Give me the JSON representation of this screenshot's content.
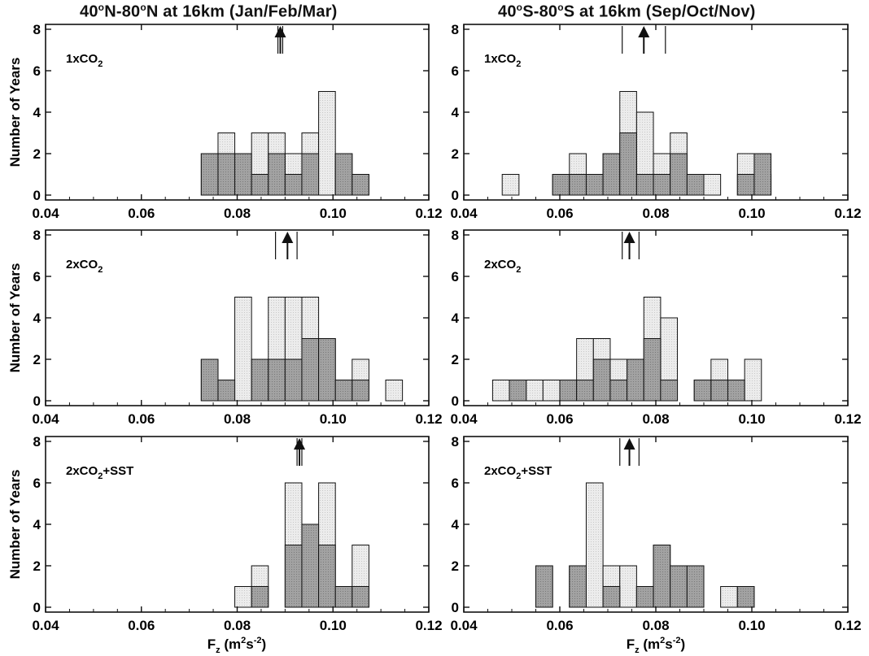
{
  "titles": {
    "left": "40°N-80°N at 16km  (Jan/Feb/Mar)",
    "right": "40°S-80°S at 16km  (Sep/Oct/Nov)"
  },
  "y_label": "Number of Years",
  "x_label": "F_z (m^2s^-2)",
  "colors": {
    "light_bars": "#e6e6e6",
    "dark_bars": "#9a9a9a",
    "outline": "#111111"
  },
  "chart_data": [
    {
      "type": "bar",
      "panel": "1xCO2 NH",
      "label": "1xCO2",
      "xlim": [
        0.04,
        0.12
      ],
      "ylim": [
        0,
        8
      ],
      "bin_width": 0.0035,
      "xticks": [
        "0.04",
        "0.06",
        "0.08",
        "0.10",
        "0.12"
      ],
      "yticks": [
        "0",
        "2",
        "4",
        "6",
        "8"
      ],
      "series": [
        {
          "x": [
            0.0725,
            0.076,
            0.0795,
            0.083,
            0.0865,
            0.09,
            0.0935,
            0.097,
            0.1005,
            0.104
          ],
          "values": [
            2,
            3,
            2,
            3,
            3,
            2,
            3,
            5,
            2,
            1
          ]
        },
        {
          "x": [
            0.0725,
            0.076,
            0.0795,
            0.083,
            0.0865,
            0.09,
            0.0935,
            0.097,
            0.1005,
            0.104
          ],
          "values": [
            2,
            2,
            2,
            1,
            2,
            1,
            2,
            0,
            2,
            1
          ]
        }
      ],
      "arrow": {
        "x": 0.089,
        "range": [
          0.0885,
          0.0895
        ]
      }
    },
    {
      "type": "bar",
      "panel": "1xCO2 SH",
      "label": "1xCO2",
      "xlim": [
        0.04,
        0.12
      ],
      "ylim": [
        0,
        8
      ],
      "bin_width": 0.0035,
      "xticks": [
        "0.04",
        "0.06",
        "0.08",
        "0.10",
        "0.12"
      ],
      "yticks": [
        "0",
        "2",
        "4",
        "6",
        "8"
      ],
      "series": [
        {
          "x": [
            0.048,
            0.0515,
            0.055,
            0.0585,
            0.062,
            0.0655,
            0.069,
            0.0725,
            0.076,
            0.0795,
            0.083,
            0.0865,
            0.09,
            0.0935,
            0.097,
            0.1005
          ],
          "values": [
            1,
            0,
            0,
            1,
            2,
            1,
            2,
            5,
            4,
            2,
            3,
            1,
            1,
            0,
            2,
            1
          ]
        },
        {
          "x": [
            0.048,
            0.0515,
            0.055,
            0.0585,
            0.062,
            0.0655,
            0.069,
            0.0725,
            0.076,
            0.0795,
            0.083,
            0.0865,
            0.09,
            0.0935,
            0.097,
            0.1005
          ],
          "values": [
            0,
            0,
            0,
            1,
            1,
            1,
            2,
            3,
            1,
            1,
            2,
            1,
            0,
            0,
            1,
            2
          ]
        }
      ],
      "arrow": {
        "x": 0.0775,
        "range": [
          0.073,
          0.082
        ]
      }
    },
    {
      "type": "bar",
      "panel": "2xCO2 NH",
      "label": "2xCO2",
      "xlim": [
        0.04,
        0.12
      ],
      "ylim": [
        0,
        8
      ],
      "bin_width": 0.0035,
      "xticks": [
        "0.04",
        "0.06",
        "0.08",
        "0.10",
        "0.12"
      ],
      "yticks": [
        "0",
        "2",
        "4",
        "6",
        "8"
      ],
      "series": [
        {
          "x": [
            0.0725,
            0.076,
            0.0795,
            0.083,
            0.0865,
            0.09,
            0.0935,
            0.097,
            0.1005,
            0.104,
            0.1075,
            0.111
          ],
          "values": [
            2,
            1,
            5,
            2,
            5,
            5,
            5,
            3,
            1,
            2,
            0,
            1
          ]
        },
        {
          "x": [
            0.0725,
            0.076,
            0.0795,
            0.083,
            0.0865,
            0.09,
            0.0935,
            0.097,
            0.1005,
            0.104,
            0.1075,
            0.111
          ],
          "values": [
            2,
            1,
            0,
            2,
            2,
            2,
            3,
            3,
            1,
            1,
            0,
            0
          ]
        }
      ],
      "arrow": {
        "x": 0.0905,
        "range": [
          0.088,
          0.0925
        ]
      }
    },
    {
      "type": "bar",
      "panel": "2xCO2 SH",
      "label": "2xCO2",
      "xlim": [
        0.04,
        0.12
      ],
      "ylim": [
        0,
        8
      ],
      "bin_width": 0.0035,
      "xticks": [
        "0.04",
        "0.06",
        "0.08",
        "0.10",
        "0.12"
      ],
      "yticks": [
        "0",
        "2",
        "4",
        "6",
        "8"
      ],
      "series": [
        {
          "x": [
            0.046,
            0.0495,
            0.053,
            0.0565,
            0.06,
            0.0635,
            0.067,
            0.0705,
            0.074,
            0.0775,
            0.081,
            0.0845,
            0.088,
            0.0915,
            0.095,
            0.0985
          ],
          "values": [
            1,
            1,
            1,
            1,
            1,
            3,
            3,
            2,
            2,
            5,
            4,
            0,
            1,
            2,
            1,
            2
          ]
        },
        {
          "x": [
            0.046,
            0.0495,
            0.053,
            0.0565,
            0.06,
            0.0635,
            0.067,
            0.0705,
            0.074,
            0.0775,
            0.081,
            0.0845,
            0.088,
            0.0915,
            0.095,
            0.0985
          ],
          "values": [
            0,
            1,
            0,
            0,
            1,
            1,
            2,
            1,
            2,
            3,
            1,
            0,
            1,
            1,
            1,
            0
          ]
        }
      ],
      "arrow": {
        "x": 0.0745,
        "range": [
          0.073,
          0.0765
        ]
      }
    },
    {
      "type": "bar",
      "panel": "2xCO2+SST NH",
      "label": "2xCO2+SST",
      "xlim": [
        0.04,
        0.12
      ],
      "ylim": [
        0,
        8
      ],
      "bin_width": 0.0035,
      "xticks": [
        "0.04",
        "0.06",
        "0.08",
        "0.10",
        "0.12"
      ],
      "yticks": [
        "0",
        "2",
        "4",
        "6",
        "8"
      ],
      "series": [
        {
          "x": [
            0.0795,
            0.083,
            0.0865,
            0.09,
            0.0935,
            0.097,
            0.1005,
            0.104
          ],
          "values": [
            1,
            2,
            0,
            6,
            4,
            6,
            1,
            3
          ]
        },
        {
          "x": [
            0.0795,
            0.083,
            0.0865,
            0.09,
            0.0935,
            0.097,
            0.1005,
            0.104
          ],
          "values": [
            0,
            1,
            0,
            3,
            4,
            3,
            1,
            1
          ]
        }
      ],
      "arrow": {
        "x": 0.093,
        "range": [
          0.0925,
          0.0935
        ]
      }
    },
    {
      "type": "bar",
      "panel": "2xCO2+SST SH",
      "label": "2xCO2+SST",
      "xlim": [
        0.04,
        0.12
      ],
      "ylim": [
        0,
        8
      ],
      "bin_width": 0.0035,
      "xticks": [
        "0.04",
        "0.06",
        "0.08",
        "0.10",
        "0.12"
      ],
      "yticks": [
        "0",
        "2",
        "4",
        "6",
        "8"
      ],
      "series": [
        {
          "x": [
            0.055,
            0.0585,
            0.062,
            0.0655,
            0.069,
            0.0725,
            0.076,
            0.0795,
            0.083,
            0.0865,
            0.09,
            0.0935,
            0.097
          ],
          "values": [
            2,
            0,
            2,
            6,
            2,
            2,
            1,
            3,
            1,
            2,
            0,
            1,
            1
          ]
        },
        {
          "x": [
            0.055,
            0.0585,
            0.062,
            0.0655,
            0.069,
            0.0725,
            0.076,
            0.0795,
            0.083,
            0.0865,
            0.09,
            0.0935,
            0.097
          ],
          "values": [
            2,
            0,
            2,
            0,
            1,
            0,
            1,
            3,
            2,
            2,
            0,
            0,
            1
          ]
        }
      ],
      "arrow": {
        "x": 0.0745,
        "range": [
          0.0725,
          0.0765
        ]
      }
    }
  ]
}
